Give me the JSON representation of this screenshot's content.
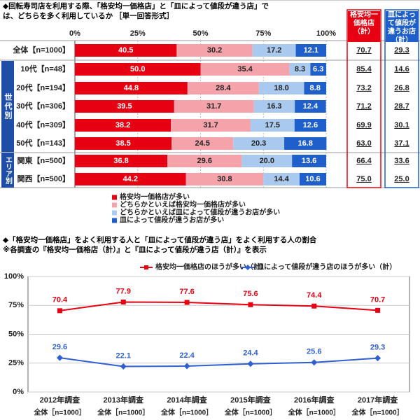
{
  "chart_data": [
    {
      "type": "stacked-bar",
      "title": "◆回転寿司店を利用する際、「格安均一価格店」と「皿によって値段が違う店」では、どちらを多く利用しているか ［単一回答形式］",
      "categories": [
        "全体【n=1000】",
        "10代【n=48】",
        "20代【n=194】",
        "30代【n=306】",
        "40代【n=309】",
        "50代【n=143】",
        "関東【n=500】",
        "関西【n=500】"
      ],
      "groups": [
        "世代別",
        "エリア別"
      ],
      "series": [
        {
          "name": "格安均一価格店が多い",
          "color": "#e60012",
          "values": [
            40.5,
            50.0,
            44.8,
            39.5,
            38.2,
            38.5,
            36.8,
            44.2
          ],
          "value_labels": [
            "40.5",
            "50.0",
            "44.8",
            "39.5",
            "38.2",
            "38.5",
            "36.8",
            "44.2"
          ]
        },
        {
          "name": "どちらかといえば格安均一価格店が多い",
          "color": "#f4a3ab",
          "values": [
            30.2,
            35.4,
            28.4,
            31.7,
            31.7,
            24.5,
            29.6,
            30.8
          ],
          "value_labels": [
            "30.2",
            "35.4",
            "28.4",
            "31.7",
            "31.7",
            "24.5",
            "29.6",
            "30.8"
          ]
        },
        {
          "name": "どちらかといえば皿によって値段が違うお店が多い",
          "color": "#a9caee",
          "values": [
            17.2,
            8.3,
            18.0,
            16.3,
            17.5,
            20.3,
            20.0,
            14.4
          ],
          "value_labels": [
            "17.2",
            "8.3",
            "18.0",
            "16.3",
            "17.5",
            "20.3",
            "20.0",
            "14.4"
          ]
        },
        {
          "name": "皿によって値段が違うお店が多い",
          "color": "#1f5fcc",
          "values": [
            12.1,
            6.3,
            8.8,
            12.4,
            12.6,
            16.8,
            13.6,
            10.6
          ],
          "value_labels": [
            "12.1",
            "6.3",
            "8.8",
            "12.4",
            "12.6",
            "16.8",
            "13.6",
            "10.6"
          ]
        }
      ],
      "totals": [
        {
          "name": "格安均一価格店（計）",
          "color": "#e60012",
          "values": [
            70.7,
            85.4,
            73.2,
            71.2,
            69.9,
            63.0,
            66.4,
            75.0
          ],
          "value_labels": [
            "70.7",
            "85.4",
            "73.2",
            "71.2",
            "69.9",
            "63.0",
            "66.4",
            "75.0"
          ]
        },
        {
          "name": "皿によって値段が違うお店（計）",
          "color": "#1f5fcc",
          "values": [
            29.3,
            14.6,
            26.8,
            28.7,
            30.1,
            37.1,
            33.6,
            25.0
          ],
          "value_labels": [
            "29.3",
            "14.6",
            "26.8",
            "28.7",
            "30.1",
            "37.1",
            "33.6",
            "25.0"
          ]
        }
      ],
      "xlim": [
        0,
        100
      ],
      "xticks": [
        {
          "value": 0,
          "label": "0%"
        },
        {
          "value": 25,
          "label": "25%"
        },
        {
          "value": 50,
          "label": "50%"
        },
        {
          "value": 75,
          "label": "75%"
        },
        {
          "value": 100,
          "label": "100%"
        }
      ]
    },
    {
      "type": "line",
      "title": "◆「格安均一価格店」をよく利用する人と「皿によって値段が違う店」をよく利用する人の割合",
      "subtitle": "※各調査の『格安均一価格店（計）』と『皿によって値段が違う店（計）』を表示",
      "categories": [
        "2012年調査",
        "2013年調査",
        "2014年調査",
        "2015年調査",
        "2016年調査",
        "2017年調査"
      ],
      "category_notes": [
        "全体［n=1000］",
        "全体［n=1000］",
        "全体［n=1000］",
        "全体［n=1000］",
        "全体［n=1000］",
        "全体［n=1000］"
      ],
      "series": [
        {
          "name": "格安均一価格店のほうが多い（計）",
          "color": "#e60012",
          "values": [
            70.4,
            77.9,
            77.6,
            75.6,
            74.4,
            70.7
          ]
        },
        {
          "name": "皿によって値段が違う店のほうが多い（計）",
          "color": "#2f5fd0",
          "values": [
            29.6,
            22.1,
            22.4,
            24.4,
            25.6,
            29.3
          ]
        }
      ],
      "ylim": [
        0,
        100
      ],
      "yticks": [
        {
          "value": 0,
          "label": "0%"
        },
        {
          "value": 25,
          "label": "25%"
        },
        {
          "value": 50,
          "label": "50%"
        },
        {
          "value": 75,
          "label": "75%"
        },
        {
          "value": 100,
          "label": "100%"
        }
      ],
      "grid": true
    }
  ]
}
